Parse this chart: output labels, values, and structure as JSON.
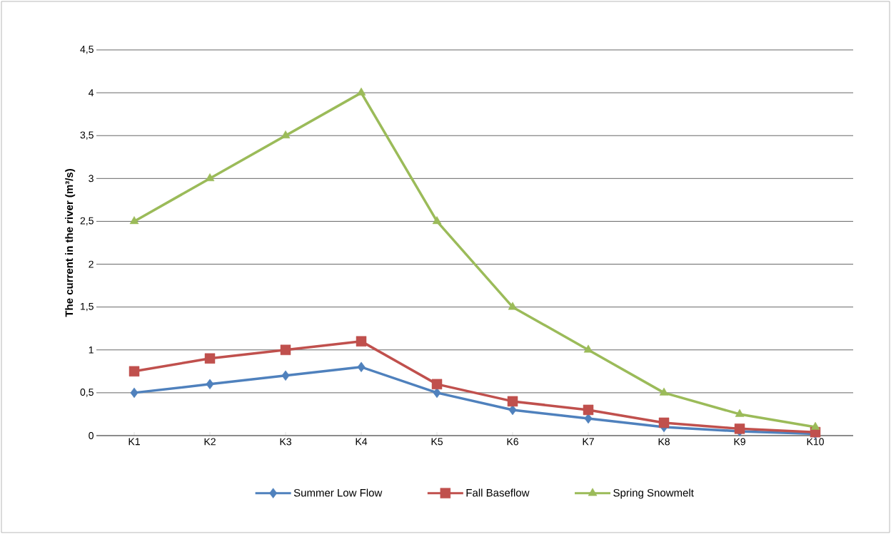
{
  "chart_data": {
    "type": "line",
    "ylabel": "The current in the river  (m³/s)",
    "categories": [
      "K1",
      "K2",
      "K3",
      "K4",
      "K5",
      "K6",
      "K7",
      "K8",
      "K9",
      "K10"
    ],
    "series": [
      {
        "name": "Summer Low Flow",
        "color": "#4f81bd",
        "marker": "diamond",
        "values": [
          0.5,
          0.6,
          0.7,
          0.8,
          0.5,
          0.3,
          0.2,
          0.1,
          0.05,
          0.02
        ]
      },
      {
        "name": "Fall Baseflow",
        "color": "#c0504d",
        "marker": "square",
        "values": [
          0.75,
          0.9,
          1.0,
          1.1,
          0.6,
          0.4,
          0.3,
          0.15,
          0.08,
          0.04
        ]
      },
      {
        "name": "Spring Snowmelt",
        "color": "#9bbb59",
        "marker": "triangle",
        "values": [
          2.5,
          3,
          3.5,
          4,
          2.5,
          1.5,
          1,
          0.5,
          0.25,
          0.1
        ]
      }
    ],
    "ylim": [
      0,
      4.5
    ],
    "yticks": [
      0,
      {
        "value": 0.5,
        "label": "0,5"
      },
      1,
      {
        "value": 1.5,
        "label": "1,5"
      },
      2,
      {
        "value": 2.5,
        "label": "2,5"
      },
      3,
      {
        "value": 3.5,
        "label": "3,5"
      },
      4,
      {
        "value": 4.5,
        "label": "4,5"
      }
    ],
    "grid": "y",
    "legend": "bottom",
    "line_style": "solid"
  }
}
